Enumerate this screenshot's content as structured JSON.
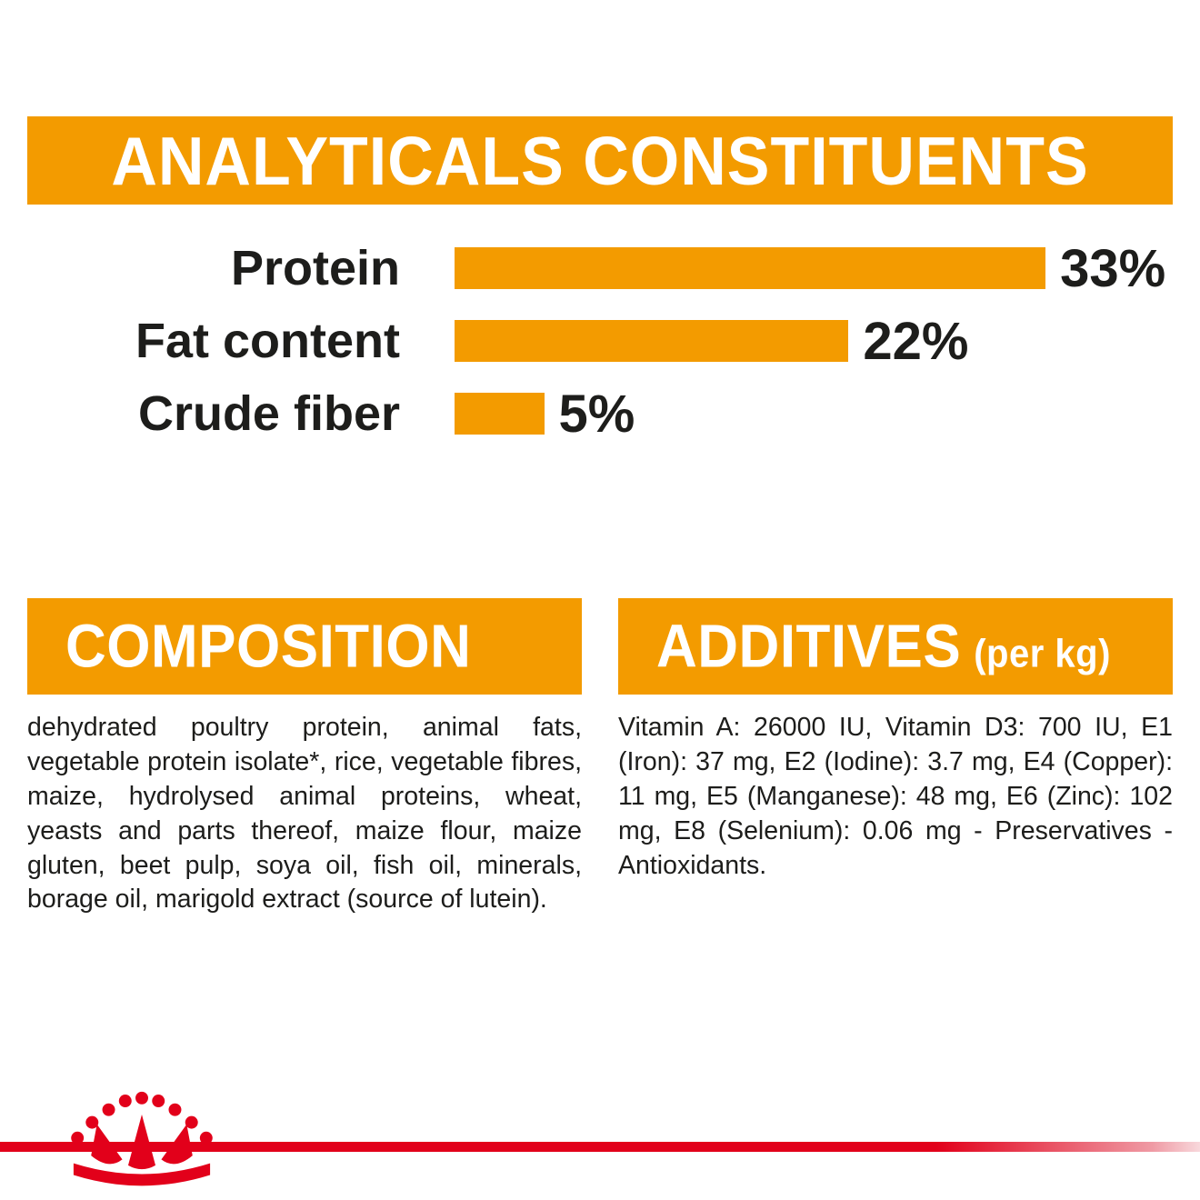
{
  "page": {
    "background": "#ffffff",
    "accent_orange": "#F39B00",
    "brand_red": "#E2001A",
    "text_color": "#1d1d1b"
  },
  "analyticals": {
    "title": "ANALYTICALS CONSTITUENTS"
  },
  "chart_data": {
    "type": "bar",
    "orientation": "horizontal",
    "title": "ANALYTICALS CONSTITUENTS",
    "categories": [
      "Protein",
      "Fat content",
      "Crude fiber"
    ],
    "values": [
      33,
      22,
      5
    ],
    "unit": "%",
    "data_labels": [
      "33%",
      "22%",
      "5%"
    ],
    "xlim": [
      0,
      35
    ],
    "bar_color": "#F39B00",
    "grid": false,
    "legend": false
  },
  "composition": {
    "title": "COMPOSITION",
    "body": "dehydrated poultry protein, animal fats, vegetable protein isolate*, rice, vegetable fibres, maize, hydrolysed animal proteins, wheat, yeasts and parts thereof, maize flour, maize gluten, beet pulp, soya oil, fish oil, minerals, borage oil, marigold extract (source of lutein)."
  },
  "additives": {
    "title": "ADDITIVES",
    "title_suffix": "(per kg)",
    "body": "Vitamin A: 26000 IU, Vitamin D3: 700 IU, E1 (Iron): 37 mg, E2 (Iodine): 3.7 mg, E4 (Copper): 11 mg, E5 (Manganese): 48 mg, E6 (Zinc): 102 mg, E8 (Selenium): 0.06 mg - Preservatives - Antioxidants."
  },
  "footer": {
    "logo": "royal-canin-crown-logo"
  }
}
